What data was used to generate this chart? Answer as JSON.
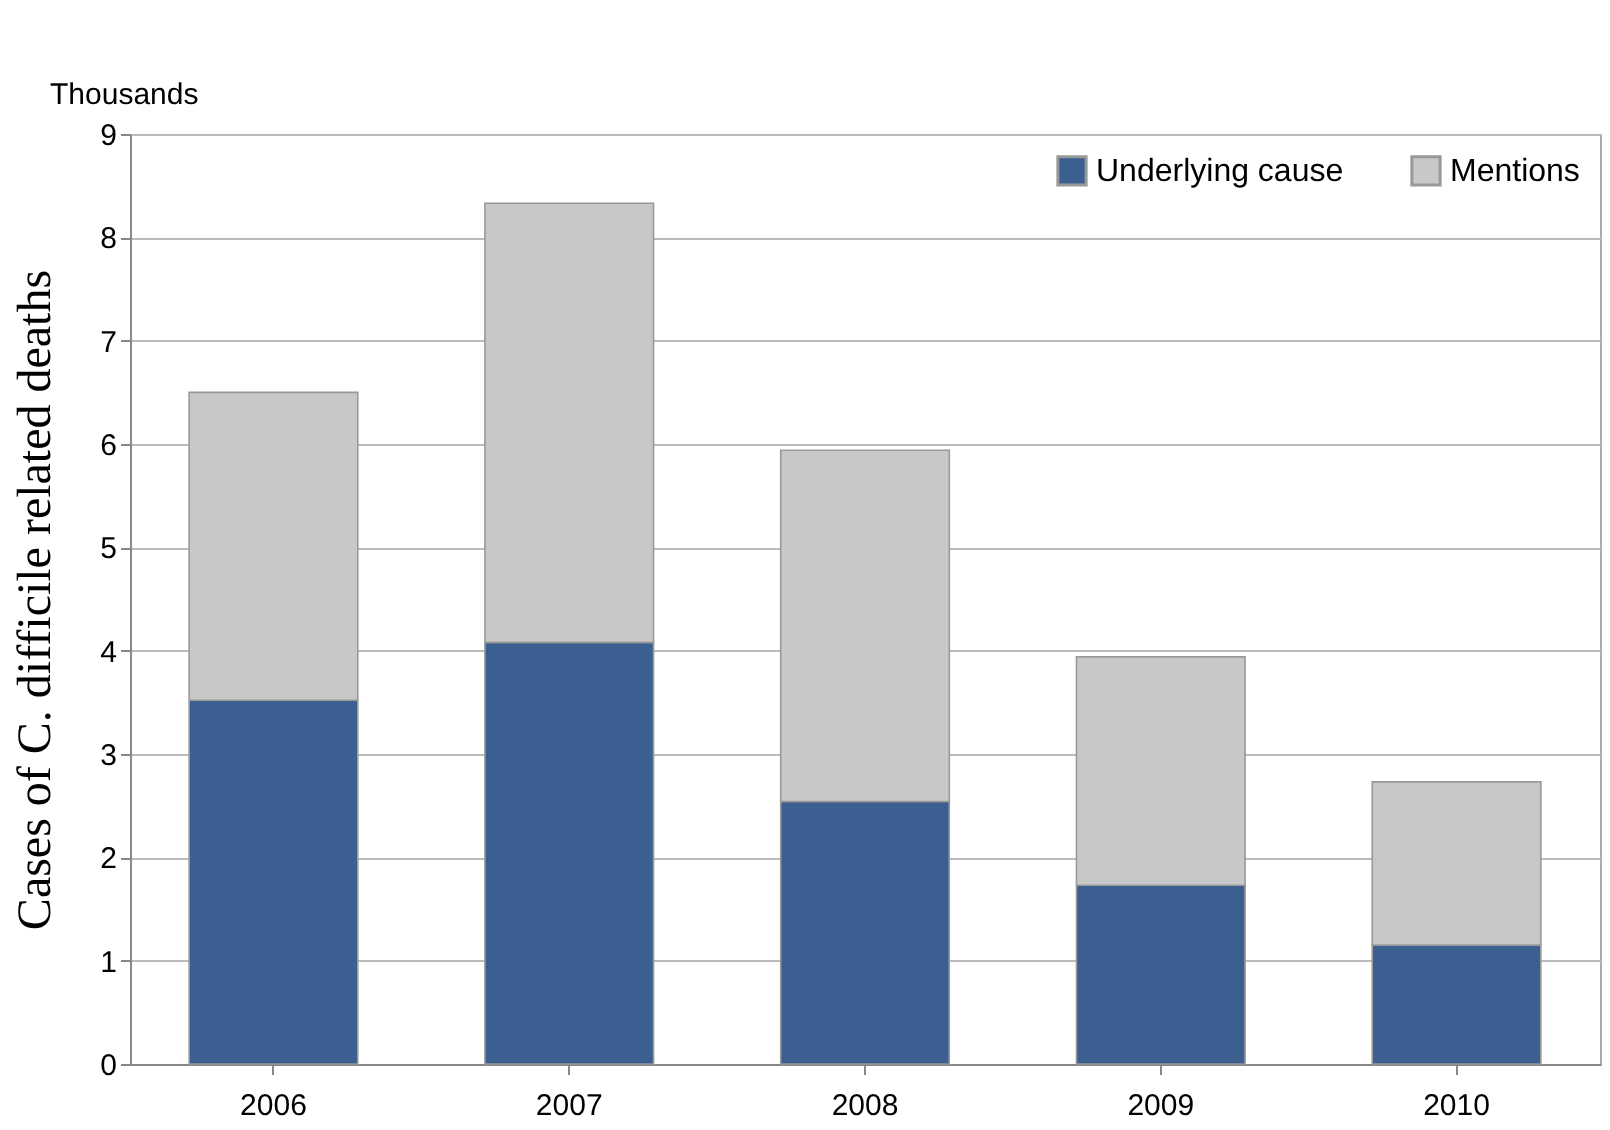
{
  "chart_data": {
    "type": "bar",
    "stacked": true,
    "categories": [
      "2006",
      "2007",
      "2008",
      "2009",
      "2010"
    ],
    "series": [
      {
        "name": "Underlying cause",
        "color": "#3b5f91",
        "values": [
          3.52,
          4.08,
          2.54,
          1.73,
          1.15
        ]
      },
      {
        "name": "Mentions",
        "color": "#c8c8c8",
        "values": [
          2.98,
          4.25,
          3.4,
          2.21,
          1.58
        ]
      }
    ],
    "ylabel": "Cases of C. difficile related deaths",
    "annotations": [
      "Thousands"
    ],
    "ylim": [
      0,
      9
    ],
    "yticks": [
      0,
      1,
      2,
      3,
      4,
      5,
      6,
      7,
      8,
      9
    ],
    "grid": "y",
    "legend": "top right"
  }
}
